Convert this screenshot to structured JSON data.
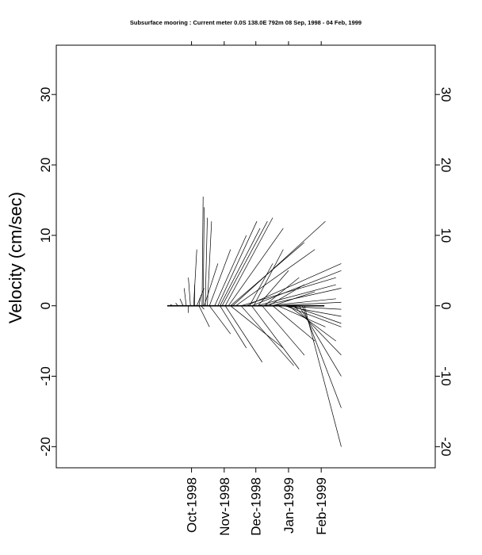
{
  "chart_data": {
    "type": "stick_plot",
    "title": "Subsurface mooring : Current meter  0.0S 138.0E   792m 08 Sep, 1998 - 04 Feb, 1999",
    "ylabel": "Velocity (cm/sec)",
    "ylim": [
      -23,
      37
    ],
    "yticks": [
      -20,
      -10,
      0,
      10,
      20,
      30
    ],
    "ytick_labels": [
      "-20",
      "-10",
      "0",
      "10",
      "20",
      "30"
    ],
    "xticks": [
      {
        "label": "Oct-1998",
        "date": "1998-10-01"
      },
      {
        "label": "Nov-1998",
        "date": "1998-11-01"
      },
      {
        "label": "Dec-1998",
        "date": "1998-12-01"
      },
      {
        "label": "Jan-1999",
        "date": "1999-01-01"
      },
      {
        "label": "Feb-1999",
        "date": "1999-02-01"
      }
    ],
    "start_date": "1998-09-08",
    "end_date": "1999-02-04",
    "sticks": [
      [
        0,
        0,
        0
      ],
      [
        5,
        3,
        0.2
      ],
      [
        10,
        8,
        0.4
      ],
      [
        15,
        12,
        1
      ],
      [
        18,
        16,
        2.5
      ],
      [
        22,
        20,
        4
      ],
      [
        26,
        26,
        3
      ],
      [
        30,
        32,
        1.5
      ],
      [
        32,
        35,
        -0.5
      ],
      [
        33,
        34,
        15.5
      ],
      [
        34,
        35,
        14
      ],
      [
        36,
        38,
        12.5
      ],
      [
        38,
        42,
        12
      ],
      [
        25,
        28,
        8
      ],
      [
        28,
        35,
        2.5
      ],
      [
        35,
        48,
        6
      ],
      [
        40,
        60,
        8
      ],
      [
        45,
        75,
        10
      ],
      [
        48,
        85,
        12
      ],
      [
        50,
        88,
        11
      ],
      [
        52,
        95,
        12
      ],
      [
        55,
        100,
        12.5
      ],
      [
        58,
        110,
        11
      ],
      [
        60,
        130,
        9
      ],
      [
        62,
        150,
        12
      ],
      [
        65,
        140,
        8
      ],
      [
        70,
        160,
        4
      ],
      [
        75,
        165,
        6
      ],
      [
        80,
        165,
        5
      ],
      [
        85,
        160,
        3
      ],
      [
        90,
        165,
        2.5
      ],
      [
        95,
        160,
        1
      ],
      [
        100,
        165,
        0.5
      ],
      [
        105,
        165,
        -0.5
      ],
      [
        110,
        165,
        -1.5
      ],
      [
        112,
        165,
        -3
      ],
      [
        115,
        160,
        -5
      ],
      [
        118,
        165,
        -2.5
      ],
      [
        120,
        165,
        -7
      ],
      [
        125,
        165,
        -10
      ],
      [
        128,
        165,
        -14.5
      ],
      [
        130,
        165,
        -20
      ],
      [
        20,
        20,
        -1
      ],
      [
        30,
        40,
        -3
      ],
      [
        40,
        60,
        -4
      ],
      [
        50,
        75,
        -6
      ],
      [
        55,
        90,
        -8
      ],
      [
        60,
        110,
        -6
      ],
      [
        70,
        120,
        -8.5
      ],
      [
        80,
        125,
        -9
      ],
      [
        90,
        130,
        -7
      ],
      [
        100,
        140,
        -5
      ],
      [
        105,
        150,
        -3
      ],
      [
        78,
        100,
        6
      ],
      [
        82,
        110,
        8
      ],
      [
        86,
        115,
        5
      ],
      [
        92,
        125,
        4
      ],
      [
        96,
        130,
        3
      ],
      [
        100,
        140,
        2
      ]
    ]
  }
}
